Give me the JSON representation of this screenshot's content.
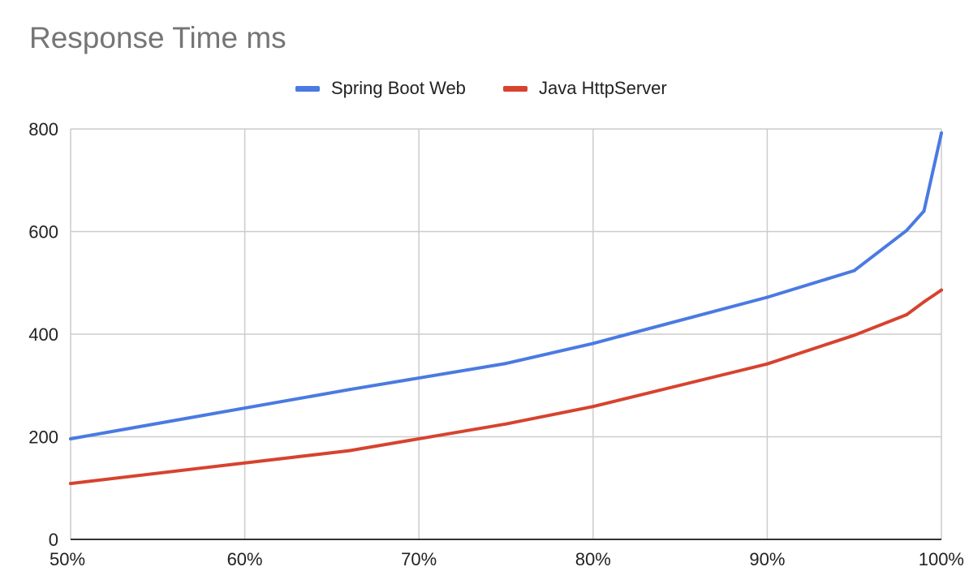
{
  "chart_data": {
    "type": "line",
    "title": "Response Time ms",
    "xlabel": "",
    "ylabel": "",
    "x": [
      50,
      66,
      75,
      80,
      90,
      95,
      98,
      99,
      100
    ],
    "x_tick_labels": [
      "50%",
      "60%",
      "70%",
      "80%",
      "90%",
      "100%"
    ],
    "x_ticks": [
      50,
      60,
      70,
      80,
      90,
      100
    ],
    "xlim": [
      50,
      100
    ],
    "y_tick_labels": [
      "0",
      "200",
      "400",
      "600",
      "800"
    ],
    "y_ticks": [
      0,
      200,
      400,
      600,
      800
    ],
    "ylim": [
      0,
      800
    ],
    "grid": true,
    "legend_position": "top-center",
    "series": [
      {
        "name": "Spring Boot Web",
        "color": "#4a7ae2",
        "values": [
          196,
          292,
          343,
          382,
          472,
          524,
          602,
          640,
          792
        ]
      },
      {
        "name": "Java HttpServer",
        "color": "#d6432f",
        "values": [
          109,
          173,
          225,
          259,
          342,
          398,
          438,
          463,
          486
        ]
      }
    ]
  }
}
